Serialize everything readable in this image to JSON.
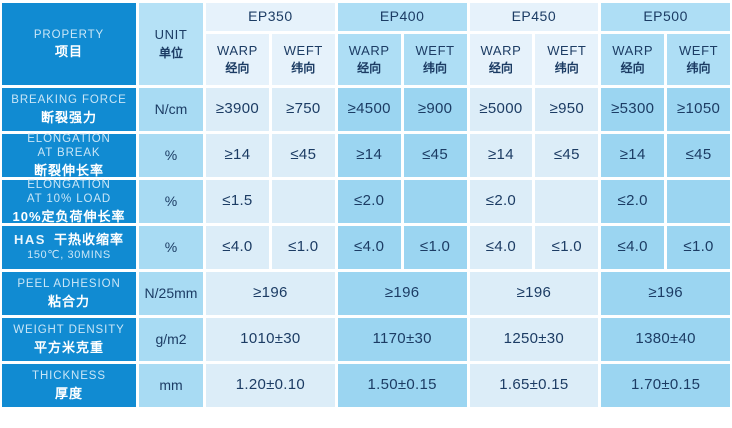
{
  "table": {
    "property_header": {
      "en": "PROPERTY",
      "zh": "项目"
    },
    "unit_header": {
      "en": "UNIT",
      "zh": "单位"
    },
    "warp_label": {
      "en": "WARP",
      "zh": "经向"
    },
    "weft_label": {
      "en": "WEFT",
      "zh": "纬向"
    },
    "groups": [
      {
        "name": "EP350"
      },
      {
        "name": "EP400"
      },
      {
        "name": "EP450"
      },
      {
        "name": "EP500"
      }
    ],
    "rows": [
      {
        "en": "BREAKING FORCE",
        "zh": "断裂强力",
        "unit": "N/cm",
        "layout": "pair",
        "values": [
          "≥3900",
          "≥750",
          "≥4500",
          "≥900",
          "≥5000",
          "≥950",
          "≥5300",
          "≥1050"
        ]
      },
      {
        "en": "ELONGATION\nAT BREAK",
        "zh": "断裂伸长率",
        "unit": "%",
        "layout": "pair",
        "values": [
          "≥14",
          "≤45",
          "≥14",
          "≤45",
          "≥14",
          "≤45",
          "≥14",
          "≤45"
        ]
      },
      {
        "en": "ELONGATION\nAT 10% LOAD",
        "zh": "10%定负荷伸长率",
        "unit": "%",
        "layout": "pair",
        "values": [
          "≤1.5",
          "",
          "≤2.0",
          "",
          "≤2.0",
          "",
          "≤2.0",
          ""
        ]
      },
      {
        "en": "HAS",
        "zh": "干热收缩率",
        "note": "150℃, 30MINS",
        "unit": "%",
        "layout": "pair",
        "values": [
          "≤4.0",
          "≤1.0",
          "≤4.0",
          "≤1.0",
          "≤4.0",
          "≤1.0",
          "≤4.0",
          "≤1.0"
        ]
      },
      {
        "en": "PEEL ADHESION",
        "zh": "粘合力",
        "unit": "N/25mm",
        "layout": "merged",
        "values": [
          "≥196",
          "≥196",
          "≥196",
          "≥196"
        ]
      },
      {
        "en": "WEIGHT DENSITY",
        "zh": "平方米克重",
        "unit": "g/m2",
        "layout": "merged",
        "values": [
          "1010±30",
          "1170±30",
          "1250±30",
          "1380±40"
        ]
      },
      {
        "en": "THICKNESS",
        "zh": "厚度",
        "unit": "mm",
        "layout": "merged",
        "values": [
          "1.20±0.10",
          "1.50±0.15",
          "1.65±0.15",
          "1.70±0.15"
        ]
      }
    ]
  },
  "colors": {
    "property_bg": "#118bd2",
    "unit_header_bg": "#b5e1f6",
    "unit_bg": "#a8dbf3",
    "light_header_bg": "#e6f2fb",
    "light_bg": "#dcedf8",
    "medium_header_bg": "#aedef5",
    "medium_bg": "#9bd5f1",
    "value_text": "#1c3c64",
    "label_en": "#c9e6f7",
    "label_zh": "#ffffff",
    "border": "#ffffff"
  }
}
